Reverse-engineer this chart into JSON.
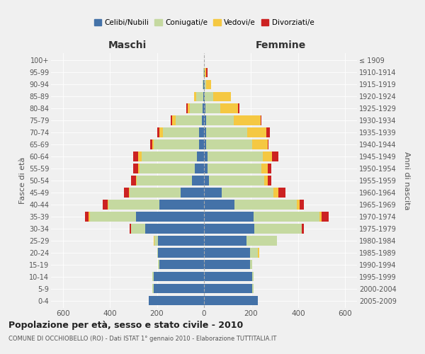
{
  "age_groups": [
    "0-4",
    "5-9",
    "10-14",
    "15-19",
    "20-24",
    "25-29",
    "30-34",
    "35-39",
    "40-44",
    "45-49",
    "50-54",
    "55-59",
    "60-64",
    "65-69",
    "70-74",
    "75-79",
    "80-84",
    "85-89",
    "90-94",
    "95-99",
    "100+"
  ],
  "birth_years": [
    "2005-2009",
    "2000-2004",
    "1995-1999",
    "1990-1994",
    "1985-1989",
    "1980-1984",
    "1975-1979",
    "1970-1974",
    "1965-1969",
    "1960-1964",
    "1955-1959",
    "1950-1954",
    "1945-1949",
    "1940-1944",
    "1935-1939",
    "1930-1934",
    "1925-1929",
    "1920-1924",
    "1915-1919",
    "1910-1914",
    "≤ 1909"
  ],
  "males": {
    "celibi": [
      235,
      215,
      215,
      190,
      195,
      195,
      250,
      290,
      190,
      100,
      50,
      40,
      30,
      20,
      20,
      10,
      5,
      2,
      2,
      0,
      0
    ],
    "coniugati": [
      0,
      5,
      5,
      5,
      5,
      15,
      60,
      195,
      215,
      215,
      235,
      235,
      235,
      195,
      155,
      110,
      55,
      30,
      5,
      2,
      0
    ],
    "vedovi": [
      0,
      0,
      0,
      0,
      0,
      5,
      0,
      5,
      5,
      5,
      5,
      5,
      15,
      5,
      15,
      15,
      10,
      10,
      0,
      0,
      0
    ],
    "divorziati": [
      0,
      0,
      0,
      0,
      0,
      0,
      5,
      15,
      20,
      20,
      20,
      20,
      20,
      10,
      10,
      5,
      5,
      0,
      0,
      0,
      0
    ]
  },
  "females": {
    "nubili": [
      230,
      205,
      205,
      195,
      195,
      180,
      215,
      210,
      130,
      75,
      20,
      15,
      15,
      10,
      10,
      10,
      5,
      3,
      2,
      2,
      0
    ],
    "coniugate": [
      0,
      5,
      5,
      10,
      35,
      130,
      200,
      280,
      265,
      220,
      235,
      230,
      235,
      195,
      175,
      115,
      65,
      35,
      8,
      2,
      0
    ],
    "vedove": [
      0,
      0,
      0,
      0,
      5,
      0,
      0,
      10,
      10,
      20,
      15,
      25,
      40,
      65,
      80,
      115,
      75,
      75,
      20,
      5,
      0
    ],
    "divorziate": [
      0,
      0,
      0,
      0,
      0,
      0,
      10,
      30,
      20,
      30,
      15,
      15,
      25,
      5,
      15,
      5,
      5,
      0,
      0,
      5,
      0
    ]
  },
  "colors": {
    "celibi": "#4472A8",
    "coniugati": "#C5D9A0",
    "vedovi": "#F5C842",
    "divorziati": "#CC2222"
  },
  "title": "Popolazione per età, sesso e stato civile - 2010",
  "subtitle": "COMUNE DI OCCHIOBELLO (RO) - Dati ISTAT 1° gennaio 2010 - Elaborazione TUTTITALIA.IT",
  "xlabel_left": "Maschi",
  "xlabel_right": "Femmine",
  "ylabel_left": "Fasce di età",
  "ylabel_right": "Anni di nascita",
  "xlim": 650,
  "background_color": "#f0f0f0"
}
